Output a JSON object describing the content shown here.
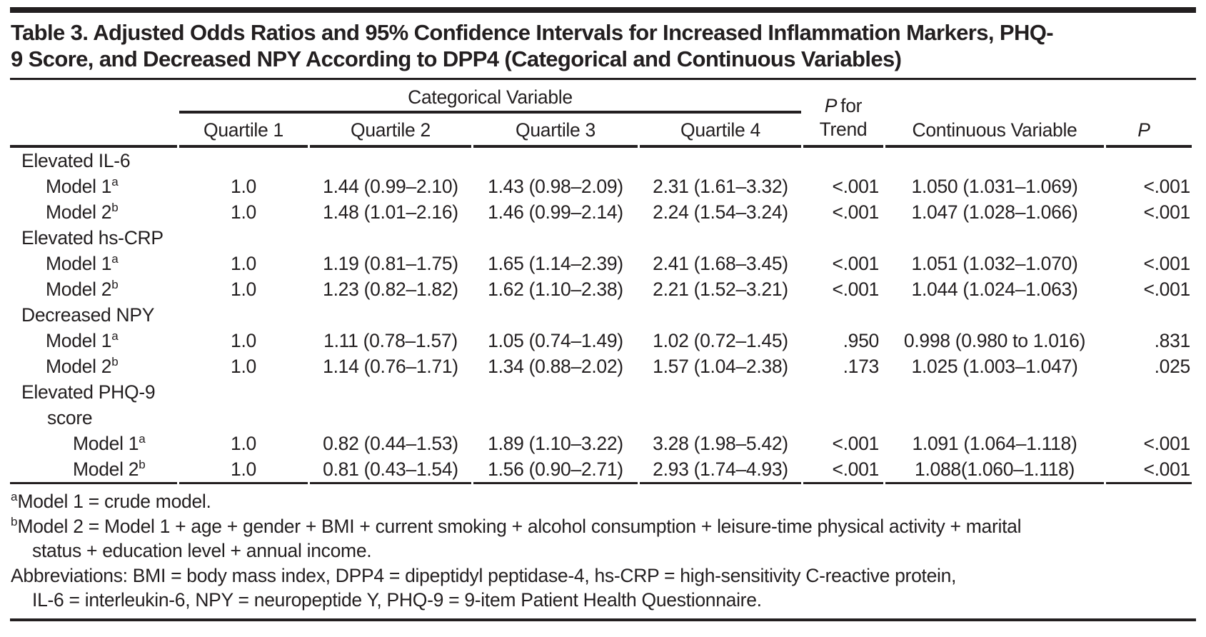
{
  "page": {
    "background": "#ffffff",
    "text_color": "#231f20",
    "rule_color": "#231f20"
  },
  "title": {
    "lines": [
      "Table 3. Adjusted Odds Ratios and 95% Confidence Intervals for Increased Inflammation Markers, PHQ-",
      "9 Score, and Decreased NPY According to DPP4 (Categorical and Continuous Variables)"
    ]
  },
  "table": {
    "spanner": "Categorical Variable",
    "col_headers": {
      "quartiles": [
        "Quartile 1",
        "Quartile 2",
        "Quartile 3",
        "Quartile 4"
      ],
      "p_trend_italic": "P",
      "p_trend_rest": "for",
      "p_trend_line2": "Trend",
      "continuous": "Continuous Variable",
      "p": "P"
    },
    "column_keys": [
      "quartile1",
      "quartile2",
      "quartile3",
      "quartile4",
      "p-for-trend",
      "continuous-variable",
      "p"
    ],
    "rows": [
      {
        "type": "section",
        "label": "Elevated IL-6",
        "sup": "",
        "cells": [
          "",
          "",
          "",
          "",
          "",
          "",
          ""
        ]
      },
      {
        "type": "model",
        "label": "Model 1",
        "sup": "a",
        "cells": [
          "1.0",
          "1.44 (0.99–2.10)",
          "1.43 (0.98–2.09)",
          "2.31 (1.61–3.32)",
          "<.001",
          "1.050 (1.031–1.069)",
          "<.001"
        ]
      },
      {
        "type": "model",
        "label": "Model 2",
        "sup": "b",
        "cells": [
          "1.0",
          "1.48 (1.01–2.16)",
          "1.46 (0.99–2.14)",
          "2.24 (1.54–3.24)",
          "<.001",
          "1.047 (1.028–1.066)",
          "<.001"
        ]
      },
      {
        "type": "section",
        "label": "Elevated hs-CRP",
        "sup": "",
        "cells": [
          "",
          "",
          "",
          "",
          "",
          "",
          ""
        ]
      },
      {
        "type": "model",
        "label": "Model 1",
        "sup": "a",
        "cells": [
          "1.0",
          "1.19 (0.81–1.75)",
          "1.65 (1.14–2.39)",
          "2.41 (1.68–3.45)",
          "<.001",
          "1.051 (1.032–1.070)",
          "<.001"
        ]
      },
      {
        "type": "model",
        "label": "Model 2",
        "sup": "b",
        "cells": [
          "1.0",
          "1.23 (0.82–1.82)",
          "1.62 (1.10–2.38)",
          "2.21 (1.52–3.21)",
          "<.001",
          "1.044 (1.024–1.063)",
          "<.001"
        ]
      },
      {
        "type": "section",
        "label": "Decreased NPY",
        "sup": "",
        "cells": [
          "",
          "",
          "",
          "",
          "",
          "",
          ""
        ]
      },
      {
        "type": "model",
        "label": "Model 1",
        "sup": "a",
        "cells": [
          "1.0",
          "1.11 (0.78–1.57)",
          "1.05 (0.74–1.49)",
          "1.02 (0.72–1.45)",
          ".950",
          "0.998 (0.980 to 1.016)",
          ".831"
        ]
      },
      {
        "type": "model",
        "label": "Model 2",
        "sup": "b",
        "cells": [
          "1.0",
          "1.14 (0.76–1.71)",
          "1.34 (0.88–2.02)",
          "1.57 (1.04–2.38)",
          ".173",
          "1.025 (1.003–1.047)",
          ".025"
        ]
      },
      {
        "type": "section",
        "label": "Elevated PHQ-9",
        "sup": "",
        "cells": [
          "",
          "",
          "",
          "",
          "",
          "",
          ""
        ]
      },
      {
        "type": "section-cont",
        "label": "score",
        "sup": "",
        "cells": [
          "",
          "",
          "",
          "",
          "",
          "",
          ""
        ]
      },
      {
        "type": "model-deep",
        "label": "Model 1",
        "sup": "a",
        "cells": [
          "1.0",
          "0.82 (0.44–1.53)",
          "1.89 (1.10–3.22)",
          "3.28 (1.98–5.42)",
          "<.001",
          "1.091 (1.064–1.118)",
          "<.001"
        ]
      },
      {
        "type": "model-deep",
        "label": "Model 2",
        "sup": "b",
        "cells": [
          "1.0",
          "0.81 (0.43–1.54)",
          "1.56 (0.90–2.71)",
          "2.93 (1.74–4.93)",
          "<.001",
          "1.088(1.060–1.118)",
          "<.001"
        ]
      }
    ]
  },
  "footnotes": [
    {
      "sup": "a",
      "lines": [
        "Model 1 = crude model."
      ]
    },
    {
      "sup": "b",
      "lines": [
        "Model 2 = Model 1 + age + gender + BMI + current smoking + alcohol consumption + leisure-time physical activity + marital",
        "status + education level + annual income."
      ]
    },
    {
      "sup": "",
      "lines": [
        "Abbreviations: BMI = body mass index, DPP4 = dipeptidyl peptidase-4, hs-CRP = high-sensitivity C-reactive protein,",
        "IL-6 = interleukin-6, NPY = neuropeptide Y, PHQ-9 = 9-item Patient Health Questionnaire."
      ]
    }
  ]
}
